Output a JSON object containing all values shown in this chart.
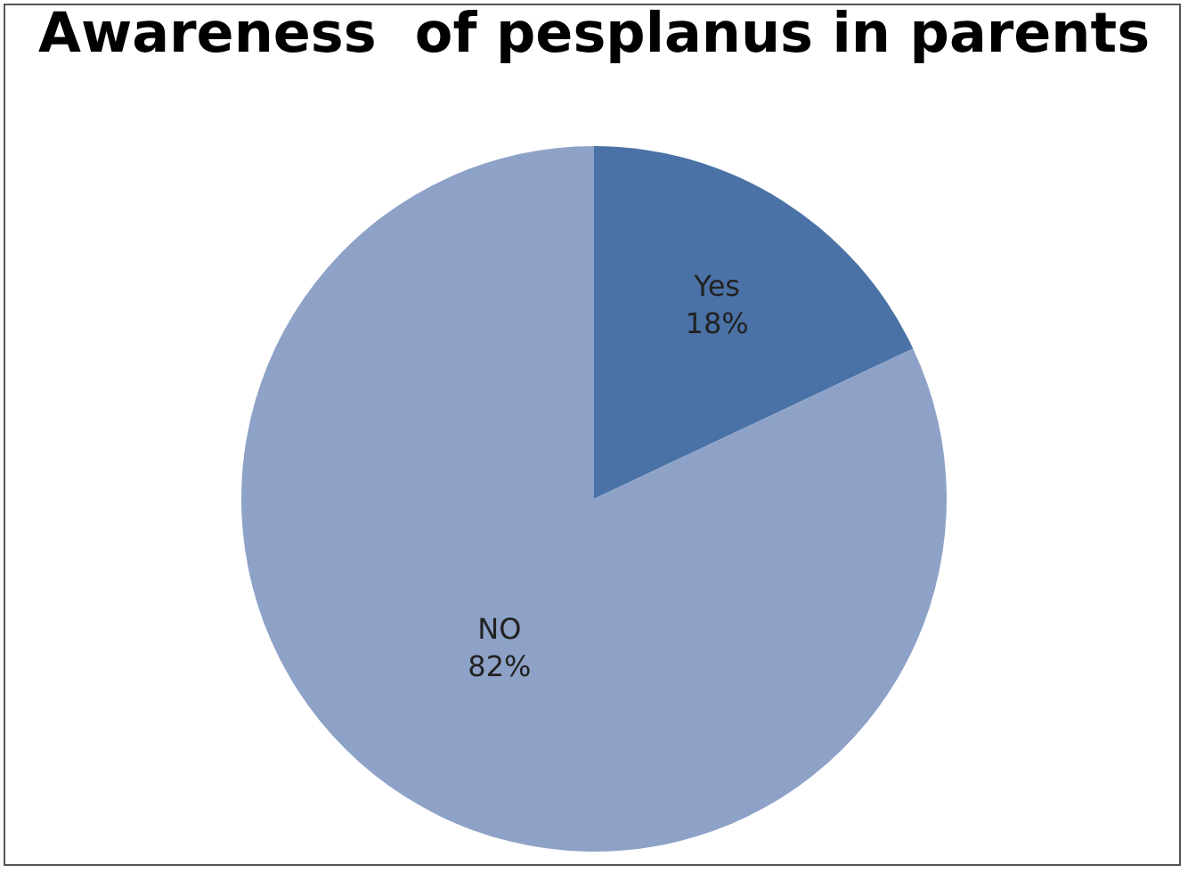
{
  "chart_data": {
    "type": "pie",
    "title": "Awareness  of pesplanus in parents",
    "categories": [
      "Yes",
      "NO"
    ],
    "values": [
      18,
      82
    ],
    "value_labels": [
      "18%",
      "82%"
    ],
    "colors": [
      "#4a72a6",
      "#8ea2c8"
    ],
    "legend": false
  }
}
